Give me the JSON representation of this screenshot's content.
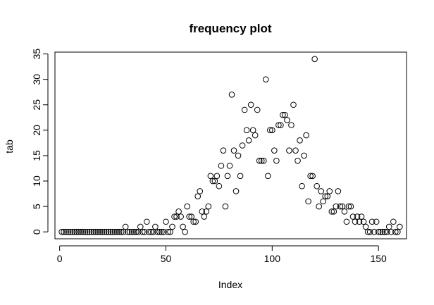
{
  "chart_data": {
    "type": "scatter",
    "title": "frequency plot",
    "xlabel": "Index",
    "ylabel": "tab",
    "xlim": [
      -2.2,
      163.2
    ],
    "ylim": [
      -1.36,
      35.36
    ],
    "x_ticks": [
      0,
      50,
      100,
      150
    ],
    "y_ticks": [
      0,
      5,
      10,
      15,
      20,
      25,
      30,
      35
    ],
    "grid": false,
    "marker": "open-circle",
    "series": [
      {
        "x": [
          1,
          2,
          3,
          4,
          5,
          6,
          7,
          8,
          9,
          10,
          11,
          12,
          13,
          14,
          15,
          16,
          17,
          18,
          19,
          20,
          21,
          22,
          23,
          24,
          25,
          26,
          27,
          28,
          29,
          30,
          31,
          32,
          33,
          34,
          35,
          36,
          37,
          38,
          39,
          40,
          41,
          42,
          43,
          44,
          45,
          46,
          47,
          48,
          49,
          50,
          51,
          52,
          53,
          54,
          55,
          56,
          57,
          58,
          59,
          60,
          61,
          62,
          63,
          64,
          65,
          66,
          67,
          68,
          69,
          70,
          71,
          72,
          73,
          74,
          75,
          76,
          77,
          78,
          79,
          80,
          81,
          82,
          83,
          84,
          85,
          86,
          87,
          88,
          89,
          90,
          91,
          92,
          93,
          94,
          95,
          96,
          97,
          98,
          99,
          100,
          101,
          102,
          103,
          104,
          105,
          106,
          107,
          108,
          109,
          110,
          111,
          112,
          113,
          114,
          115,
          116,
          117,
          118,
          119,
          120,
          121,
          122,
          123,
          124,
          125,
          126,
          127,
          128,
          129,
          130,
          131,
          132,
          133,
          134,
          135,
          136,
          137,
          138,
          139,
          140,
          141,
          142,
          143,
          144,
          145,
          146,
          147,
          148,
          149,
          150,
          151,
          152,
          153,
          154,
          155,
          156,
          157,
          158,
          159,
          160
        ],
        "y": [
          0,
          0,
          0,
          0,
          0,
          0,
          0,
          0,
          0,
          0,
          0,
          0,
          0,
          0,
          0,
          0,
          0,
          0,
          0,
          0,
          0,
          0,
          0,
          0,
          0,
          0,
          0,
          0,
          0,
          0,
          1,
          0,
          0,
          0,
          0,
          0,
          0,
          1,
          0,
          0,
          2,
          0,
          0,
          0,
          1,
          0,
          0,
          0,
          0,
          2,
          0,
          0,
          1,
          3,
          3,
          4,
          3,
          1,
          0,
          5,
          3,
          3,
          2,
          2,
          7,
          8,
          4,
          3,
          4,
          5,
          11,
          10,
          10,
          11,
          9,
          13,
          16,
          5,
          11,
          13,
          27,
          16,
          8,
          15,
          11,
          17,
          24,
          20,
          18,
          25,
          20,
          19,
          24,
          14,
          14,
          14,
          30,
          11,
          20,
          20,
          16,
          14,
          21,
          21,
          23,
          23,
          22,
          16,
          21,
          25,
          16,
          14,
          18,
          9,
          15,
          19,
          6,
          11,
          11,
          34,
          9,
          5,
          8,
          6,
          7,
          7,
          8,
          4,
          4,
          5,
          8,
          5,
          5,
          4,
          2,
          5,
          5,
          3,
          2,
          3,
          2,
          3,
          2,
          1,
          0,
          0,
          2,
          0,
          2,
          0,
          0,
          0,
          0,
          0,
          1,
          0,
          2,
          0,
          0,
          1
        ]
      }
    ]
  }
}
